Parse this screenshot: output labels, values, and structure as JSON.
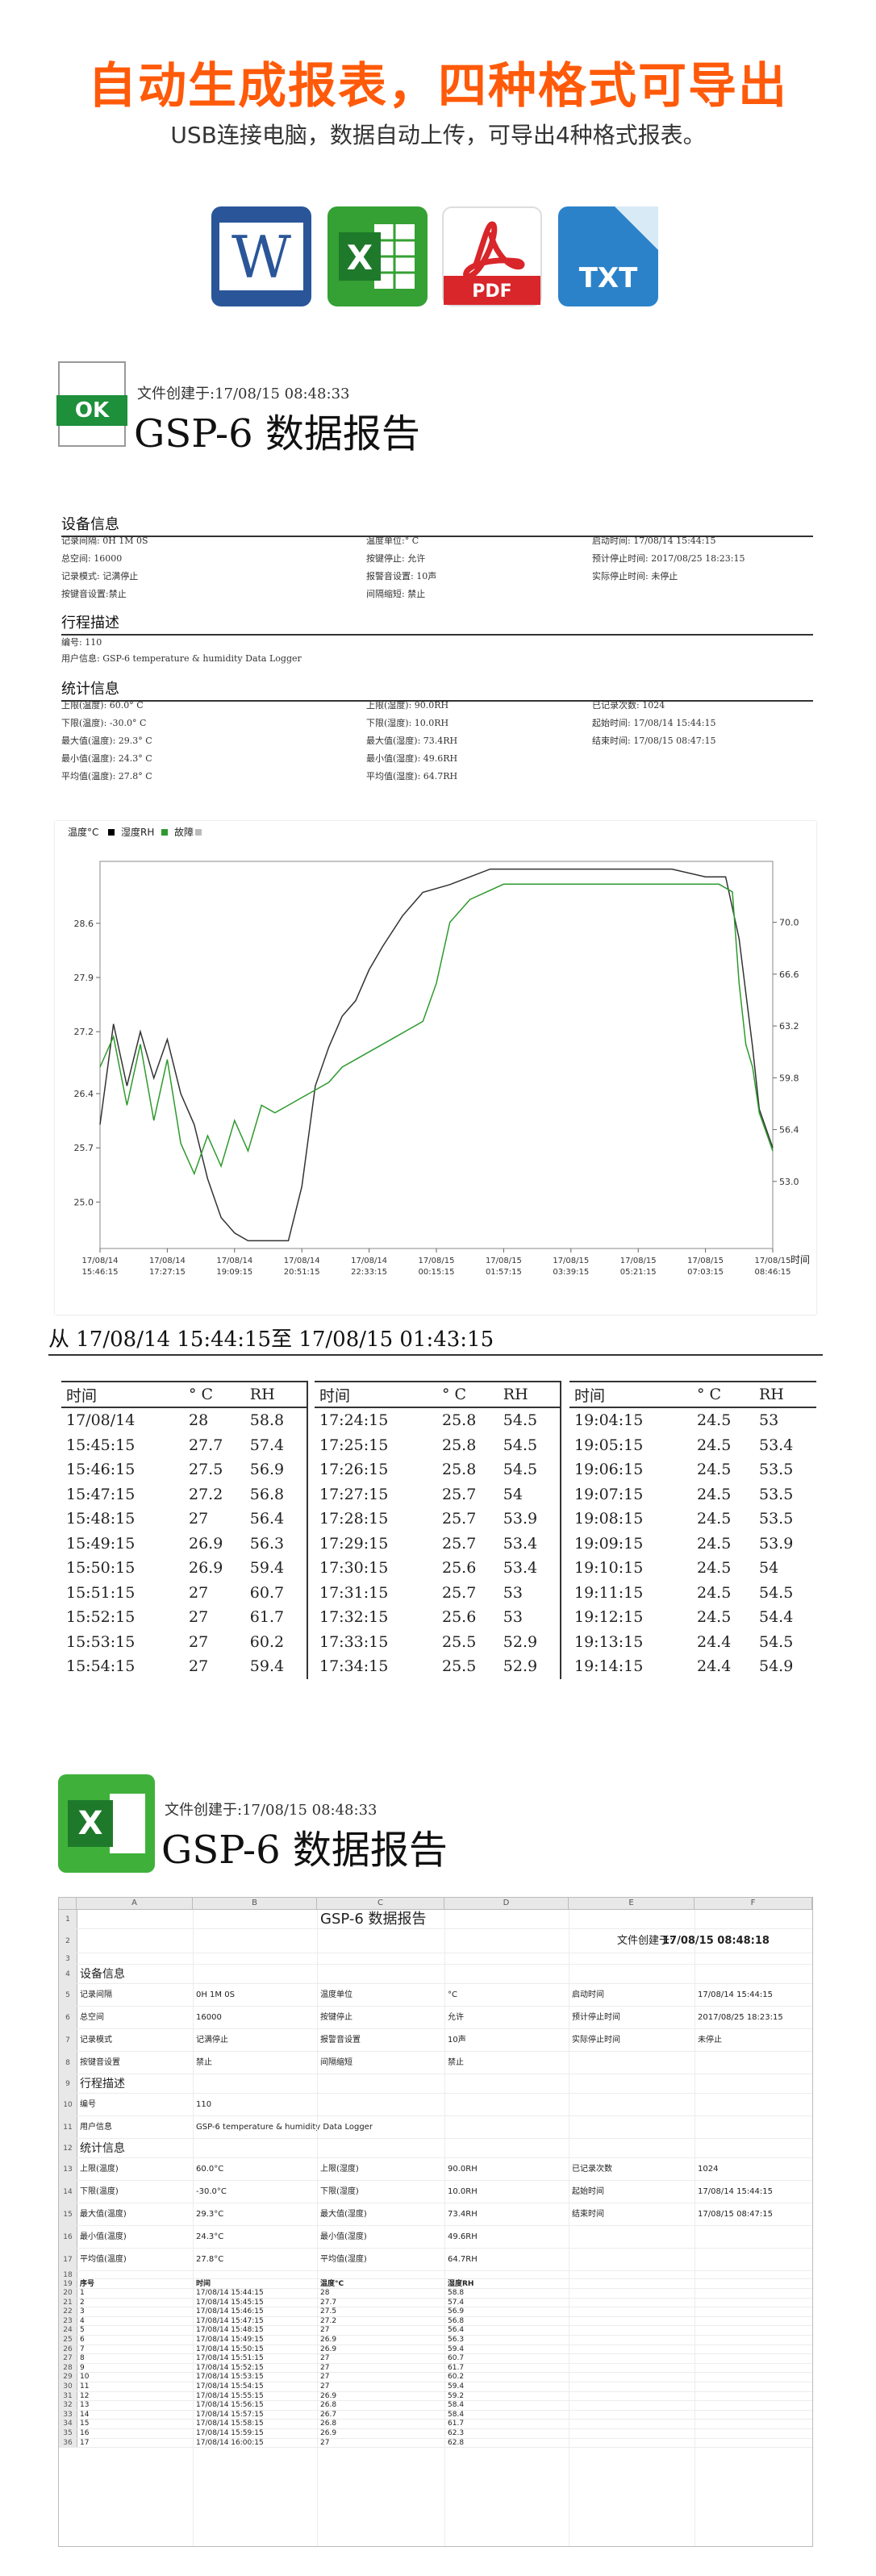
{
  "header": {
    "title": "自动生成报表，四种格式可导出",
    "subtitle": "USB连接电脑，数据自动上传，可导出4种格式报表。",
    "formats": [
      {
        "name": "word-icon",
        "label": "W"
      },
      {
        "name": "excel-icon",
        "label": "X"
      },
      {
        "name": "pdf-icon",
        "label": "PDF"
      },
      {
        "name": "txt-icon",
        "label": "TXT"
      }
    ]
  },
  "report": {
    "ok_label": "OK",
    "created": "文件创建于:17/08/15 08:48:33",
    "title": "GSP-6 数据报告",
    "device_info_heading": "设备信息",
    "device_info": [
      [
        "记录间隔: 0H 1M 0S",
        "温度单位:° C",
        "启动时间: 17/08/14 15:44:15"
      ],
      [
        "总空间: 16000",
        "按键停止: 允许",
        "预计停止时间: 2017/08/25 18:23:15"
      ],
      [
        "记录模式: 记满停止",
        "报警音设置: 10声",
        "实际停止时间: 未停止"
      ],
      [
        "按键音设置:禁止",
        "间隔缩短: 禁止",
        ""
      ]
    ],
    "trip_heading": "行程描述",
    "trip": [
      "编号: 110",
      "用户信息: GSP-6 temperature & humidity Data Logger"
    ],
    "stats_heading": "统计信息",
    "stats": [
      [
        "上限(温度): 60.0° C",
        "上限(湿度): 90.0RH",
        "已记录次数: 1024"
      ],
      [
        "下限(温度): -30.0° C",
        "下限(湿度): 10.0RH",
        "起始时间: 17/08/14 15:44:15"
      ],
      [
        "最大值(温度): 29.3° C",
        "最大值(湿度): 73.4RH",
        "结束时间: 17/08/15 08:47:15"
      ],
      [
        "最小值(温度): 24.3° C",
        "最小值(湿度): 49.6RH",
        ""
      ],
      [
        "平均值(温度): 27.8° C",
        "平均值(湿度): 64.7RH",
        ""
      ]
    ]
  },
  "chart_data": {
    "type": "line",
    "legend": [
      "温度°C",
      "湿度RH",
      "故障"
    ],
    "x_label": "时间",
    "x_ticks": [
      "17/08/14 15:46:15",
      "17/08/14 17:27:15",
      "17/08/14 19:09:15",
      "17/08/14 20:51:15",
      "17/08/14 22:33:15",
      "17/08/15 00:15:15",
      "17/08/15 01:57:15",
      "17/08/15 03:39:15",
      "17/08/15 05:21:15",
      "17/08/15 07:03:15",
      "17/08/15 08:46:15"
    ],
    "y_left_ticks": [
      "25.0",
      "25.7",
      "26.4",
      "27.2",
      "27.9",
      "28.6"
    ],
    "y_left_range": [
      24.4,
      29.4
    ],
    "y_right_ticks": [
      "53.0",
      "56.4",
      "59.8",
      "63.2",
      "66.6",
      "70.0"
    ],
    "y_right_range": [
      48.6,
      74.0
    ],
    "grid": false,
    "series": [
      {
        "name": "温度°C",
        "color": "#333333",
        "x": [
          0,
          0.02,
          0.04,
          0.06,
          0.08,
          0.1,
          0.12,
          0.14,
          0.16,
          0.18,
          0.2,
          0.22,
          0.24,
          0.26,
          0.28,
          0.3,
          0.32,
          0.34,
          0.36,
          0.38,
          0.4,
          0.42,
          0.45,
          0.48,
          0.52,
          0.55,
          0.58,
          0.6,
          0.65,
          0.7,
          0.75,
          0.8,
          0.85,
          0.9,
          0.93,
          0.95,
          0.97,
          0.98,
          1.0
        ],
        "values": [
          26.0,
          27.3,
          26.5,
          27.2,
          26.6,
          27.1,
          26.4,
          26.0,
          25.3,
          24.8,
          24.6,
          24.5,
          24.5,
          24.5,
          24.5,
          25.2,
          26.5,
          27.0,
          27.4,
          27.6,
          28.0,
          28.3,
          28.7,
          29.0,
          29.1,
          29.2,
          29.3,
          29.3,
          29.3,
          29.3,
          29.3,
          29.3,
          29.3,
          29.2,
          29.2,
          28.4,
          27.0,
          26.2,
          25.7
        ]
      },
      {
        "name": "湿度RH",
        "color": "#2e9a2e",
        "x": [
          0,
          0.02,
          0.04,
          0.06,
          0.08,
          0.1,
          0.12,
          0.14,
          0.16,
          0.18,
          0.2,
          0.22,
          0.24,
          0.26,
          0.28,
          0.3,
          0.32,
          0.34,
          0.36,
          0.38,
          0.4,
          0.42,
          0.44,
          0.46,
          0.48,
          0.5,
          0.52,
          0.55,
          0.6,
          0.65,
          0.7,
          0.75,
          0.8,
          0.85,
          0.9,
          0.92,
          0.94,
          0.95,
          0.96,
          0.97,
          0.98,
          1.0
        ],
        "values": [
          60.5,
          62.5,
          58.0,
          62.0,
          57.0,
          61.0,
          55.5,
          53.5,
          56.0,
          54.0,
          57.0,
          55.0,
          58.0,
          57.5,
          58.0,
          58.5,
          59.0,
          59.5,
          60.5,
          61.0,
          61.5,
          62.0,
          62.5,
          63.0,
          63.5,
          66.0,
          70.0,
          71.5,
          72.5,
          72.5,
          72.5,
          72.5,
          72.5,
          72.5,
          72.5,
          72.5,
          72.0,
          66.0,
          62.0,
          60.5,
          57.5,
          55.0
        ]
      }
    ]
  },
  "table1": {
    "range": "从 17/08/14 15:44:15至 17/08/15 01:43:15",
    "headers": [
      "时间",
      "° C",
      "RH"
    ],
    "col1": [
      [
        "17/08/14",
        "28",
        "58.8"
      ],
      [
        "15:45:15",
        "27.7",
        "57.4"
      ],
      [
        "15:46:15",
        "27.5",
        "56.9"
      ],
      [
        "15:47:15",
        "27.2",
        "56.8"
      ],
      [
        "15:48:15",
        "27",
        "56.4"
      ],
      [
        "15:49:15",
        "26.9",
        "56.3"
      ],
      [
        "15:50:15",
        "26.9",
        "59.4"
      ],
      [
        "15:51:15",
        "27",
        "60.7"
      ],
      [
        "15:52:15",
        "27",
        "61.7"
      ],
      [
        "15:53:15",
        "27",
        "60.2"
      ],
      [
        "15:54:15",
        "27",
        "59.4"
      ]
    ],
    "col2": [
      [
        "17:24:15",
        "25.8",
        "54.5"
      ],
      [
        "17:25:15",
        "25.8",
        "54.5"
      ],
      [
        "17:26:15",
        "25.8",
        "54.5"
      ],
      [
        "17:27:15",
        "25.7",
        "54"
      ],
      [
        "17:28:15",
        "25.7",
        "53.9"
      ],
      [
        "17:29:15",
        "25.7",
        "53.4"
      ],
      [
        "17:30:15",
        "25.6",
        "53.4"
      ],
      [
        "17:31:15",
        "25.7",
        "53"
      ],
      [
        "17:32:15",
        "25.6",
        "53"
      ],
      [
        "17:33:15",
        "25.5",
        "52.9"
      ],
      [
        "17:34:15",
        "25.5",
        "52.9"
      ]
    ],
    "col3": [
      [
        "19:04:15",
        "24.5",
        "53"
      ],
      [
        "19:05:15",
        "24.5",
        "53.4"
      ],
      [
        "19:06:15",
        "24.5",
        "53.5"
      ],
      [
        "19:07:15",
        "24.5",
        "53.5"
      ],
      [
        "19:08:15",
        "24.5",
        "53.5"
      ],
      [
        "19:09:15",
        "24.5",
        "53.9"
      ],
      [
        "19:10:15",
        "24.5",
        "54"
      ],
      [
        "19:11:15",
        "24.5",
        "54.5"
      ],
      [
        "19:12:15",
        "24.5",
        "54.4"
      ],
      [
        "19:13:15",
        "24.4",
        "54.5"
      ],
      [
        "19:14:15",
        "24.4",
        "54.9"
      ]
    ]
  },
  "excel": {
    "created": "文件创建于:17/08/15 08:48:33",
    "title": "GSP-6 数据报告",
    "columns": [
      "A",
      "B",
      "C",
      "D",
      "E",
      "F"
    ],
    "sheet_title": "GSP-6 数据报告",
    "sheet_created_label": "文件创建于:",
    "sheet_created_value": "17/08/15 08:48:18",
    "device_heading": "设备信息",
    "device_rows": [
      [
        "记录间隔",
        "0H 1M 0S",
        "温度单位",
        "°C",
        "启动时间",
        "17/08/14 15:44:15"
      ],
      [
        "总空间",
        "16000",
        "按键停止",
        "允许",
        "预计停止时间",
        "2017/08/25 18:23:15"
      ],
      [
        "记录模式",
        "记满停止",
        "报警音设置",
        "10声",
        "实际停止时间",
        "未停止"
      ],
      [
        "按键音设置",
        "禁止",
        "间隔缩短",
        "禁止",
        "",
        ""
      ]
    ],
    "trip_heading": "行程描述",
    "trip_rows": [
      [
        "编号",
        "110"
      ],
      [
        "用户信息",
        "GSP-6 temperature & humidity Data Logger"
      ]
    ],
    "stats_heading": "统计信息",
    "stats_rows": [
      [
        "上限(温度)",
        "60.0°C",
        "上限(湿度)",
        "90.0RH",
        "已记录次数",
        "1024"
      ],
      [
        "下限(温度)",
        "-30.0°C",
        "下限(湿度)",
        "10.0RH",
        "起始时间",
        "17/08/14 15:44:15"
      ],
      [
        "最大值(温度)",
        "29.3°C",
        "最大值(湿度)",
        "73.4RH",
        "结束时间",
        "17/08/15 08:47:15"
      ],
      [
        "最小值(温度)",
        "24.3°C",
        "最小值(湿度)",
        "49.6RH",
        "",
        ""
      ],
      [
        "平均值(温度)",
        "27.8°C",
        "平均值(湿度)",
        "64.7RH",
        "",
        ""
      ]
    ],
    "data_headers": [
      "序号",
      "时间",
      "温度°C",
      "湿度RH"
    ],
    "data_rows": [
      [
        "1",
        "17/08/14 15:44:15",
        "28",
        "58.8"
      ],
      [
        "2",
        "17/08/14 15:45:15",
        "27.7",
        "57.4"
      ],
      [
        "3",
        "17/08/14 15:46:15",
        "27.5",
        "56.9"
      ],
      [
        "4",
        "17/08/14 15:47:15",
        "27.2",
        "56.8"
      ],
      [
        "5",
        "17/08/14 15:48:15",
        "27",
        "56.4"
      ],
      [
        "6",
        "17/08/14 15:49:15",
        "26.9",
        "56.3"
      ],
      [
        "7",
        "17/08/14 15:50:15",
        "26.9",
        "59.4"
      ],
      [
        "8",
        "17/08/14 15:51:15",
        "27",
        "60.7"
      ],
      [
        "9",
        "17/08/14 15:52:15",
        "27",
        "61.7"
      ],
      [
        "10",
        "17/08/14 15:53:15",
        "27",
        "60.2"
      ],
      [
        "11",
        "17/08/14 15:54:15",
        "27",
        "59.4"
      ],
      [
        "12",
        "17/08/14 15:55:15",
        "26.9",
        "59.2"
      ],
      [
        "13",
        "17/08/14 15:56:15",
        "26.8",
        "58.4"
      ],
      [
        "14",
        "17/08/14 15:57:15",
        "26.7",
        "58.4"
      ],
      [
        "15",
        "17/08/14 15:58:15",
        "26.8",
        "61.7"
      ],
      [
        "16",
        "17/08/14 15:59:15",
        "26.9",
        "62.3"
      ],
      [
        "17",
        "17/08/14 16:00:15",
        "27",
        "62.8"
      ]
    ]
  }
}
